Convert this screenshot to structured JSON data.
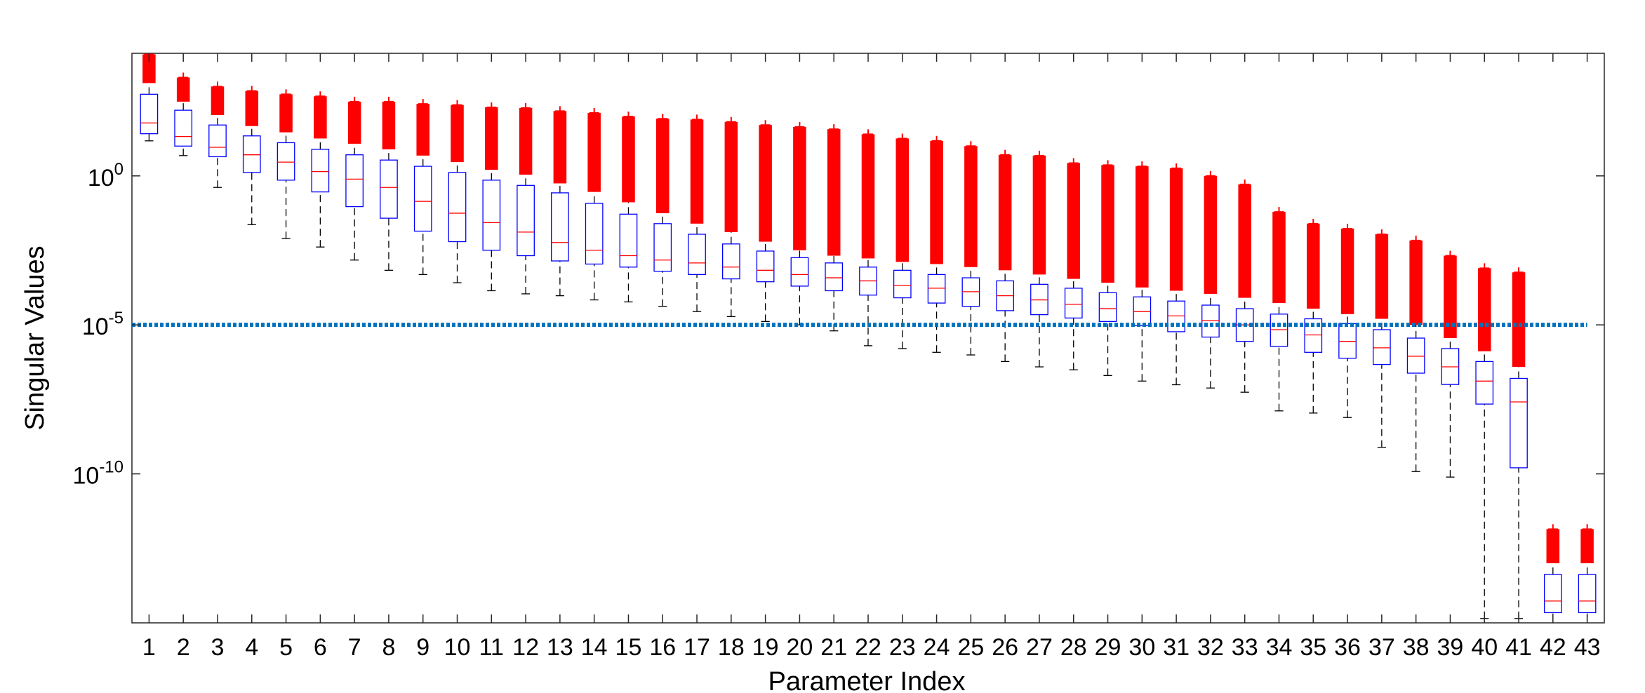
{
  "chart_data": {
    "type": "box",
    "xlabel": "Parameter Index",
    "ylabel": "Singular Values",
    "yscale": "log",
    "ylim": [
      1e-15,
      13000
    ],
    "yticks": [
      {
        "value": 1e-10,
        "label": "10",
        "exponent": "-10"
      },
      {
        "value": 1e-05,
        "label": "10",
        "exponent": "-5"
      },
      {
        "value": 1,
        "label": "10",
        "exponent": "0"
      }
    ],
    "hline": {
      "value": 1e-05,
      "color": "#0072bd"
    },
    "box_color": "#0000ff",
    "median_color": "#ff0000",
    "outlier_color": "#ff0000",
    "whisker_color": "#000000",
    "categories": [
      "1",
      "2",
      "3",
      "4",
      "5",
      "6",
      "7",
      "8",
      "9",
      "10",
      "11",
      "12",
      "13",
      "14",
      "15",
      "16",
      "17",
      "18",
      "19",
      "20",
      "21",
      "22",
      "23",
      "24",
      "25",
      "26",
      "27",
      "28",
      "29",
      "30",
      "31",
      "32",
      "33",
      "34",
      "35",
      "36",
      "37",
      "38",
      "39",
      "40",
      "41",
      "42",
      "43"
    ],
    "whisker_low": [
      15,
      4.8,
      0.41,
      0.023,
      0.0079,
      0.0041,
      0.0015,
      0.00068,
      0.00049,
      0.00026,
      0.00014,
      0.00011,
      9.5e-05,
      6.9e-05,
      5.9e-05,
      4.2e-05,
      2.8e-05,
      1.9e-05,
      1.3e-05,
      1e-05,
      6.3e-06,
      2e-06,
      1.6e-06,
      1.2e-06,
      9.8e-07,
      5.9e-07,
      3.9e-07,
      3.1e-07,
      2e-07,
      1.3e-07,
      9.8e-08,
      7.6e-08,
      5.5e-08,
      1.3e-08,
      1.1e-08,
      7.8e-09,
      7.8e-10,
      1.2e-10,
      7.8e-11,
      1.4e-15,
      1.4e-15,
      5e-16,
      5e-16
    ],
    "q1": [
      26,
      10,
      4.4,
      1.3,
      0.72,
      0.29,
      0.093,
      0.038,
      0.014,
      0.0062,
      0.0032,
      0.0021,
      0.0014,
      0.0011,
      0.00087,
      0.00063,
      0.00049,
      0.00035,
      0.00028,
      0.0002,
      0.00014,
      0.0001,
      8.1e-05,
      5.4e-05,
      4.2e-05,
      3e-05,
      2.2e-05,
      1.7e-05,
      1.3e-05,
      9.5e-06,
      5.9e-06,
      3.9e-06,
      2.8e-06,
      1.9e-06,
      1.2e-06,
      7.6e-07,
      4.7e-07,
      2.4e-07,
      1e-07,
      2.2e-08,
      1.6e-10,
      2.2e-15,
      2.2e-15
    ],
    "median": [
      60,
      21,
      9.1,
      5.1,
      2.9,
      1.4,
      0.78,
      0.41,
      0.14,
      0.056,
      0.027,
      0.013,
      0.0058,
      0.0032,
      0.0021,
      0.0015,
      0.0012,
      0.00087,
      0.00068,
      0.00049,
      0.00038,
      0.0003,
      0.00021,
      0.00017,
      0.00013,
      9.5e-05,
      6.9e-05,
      4.9e-05,
      3.5e-05,
      2.8e-05,
      2e-05,
      1.4e-05,
      1e-05,
      6.9e-06,
      4.6e-06,
      2.8e-06,
      1.7e-06,
      8.9e-07,
      3.9e-07,
      1.3e-07,
      2.6e-08,
      5.4e-15,
      5.4e-15
    ],
    "q3": [
      550,
      160,
      51,
      22,
      13,
      7.8,
      5.1,
      3.4,
      2.1,
      1.3,
      0.72,
      0.48,
      0.27,
      0.12,
      0.052,
      0.025,
      0.011,
      0.0052,
      0.003,
      0.0018,
      0.0012,
      0.00087,
      0.00068,
      0.00049,
      0.00038,
      0.0003,
      0.00023,
      0.00017,
      0.00012,
      8.7e-05,
      6.3e-05,
      4.6e-05,
      3.5e-05,
      2.3e-05,
      1.6e-05,
      1.1e-05,
      6.9e-06,
      3.6e-06,
      1.6e-06,
      5.9e-07,
      1.6e-07,
      4.2e-14,
      4.2e-14
    ],
    "whisker_high": [
      1300,
      310,
      110,
      47,
      29,
      18,
      12,
      7.8,
      4.8,
      2.9,
      1.6,
      1.1,
      0.56,
      0.29,
      0.13,
      0.056,
      0.025,
      0.013,
      0.0062,
      0.0032,
      0.0021,
      0.0017,
      0.0013,
      0.0011,
      0.00087,
      0.00068,
      0.00049,
      0.00035,
      0.00026,
      0.00018,
      0.00014,
      0.00011,
      8.1e-05,
      5.4e-05,
      3.5e-05,
      2.3e-05,
      1.6e-05,
      1e-05,
      3.6e-06,
      1.3e-06,
      3.9e-07,
      1e-13,
      1e-13
    ],
    "outlier_max": [
      12000,
      2000,
      1000,
      710,
      550,
      470,
      310,
      310,
      260,
      240,
      200,
      190,
      150,
      130,
      98,
      83,
      78,
      65,
      51,
      44,
      37,
      25,
      18,
      15,
      10,
      5.1,
      4.8,
      2.7,
      2.3,
      2.1,
      1.8,
      1.0,
      0.52,
      0.062,
      0.025,
      0.017,
      0.011,
      0.0068,
      0.0021,
      0.0008,
      0.00058,
      1.4e-12,
      1.4e-12
    ]
  }
}
